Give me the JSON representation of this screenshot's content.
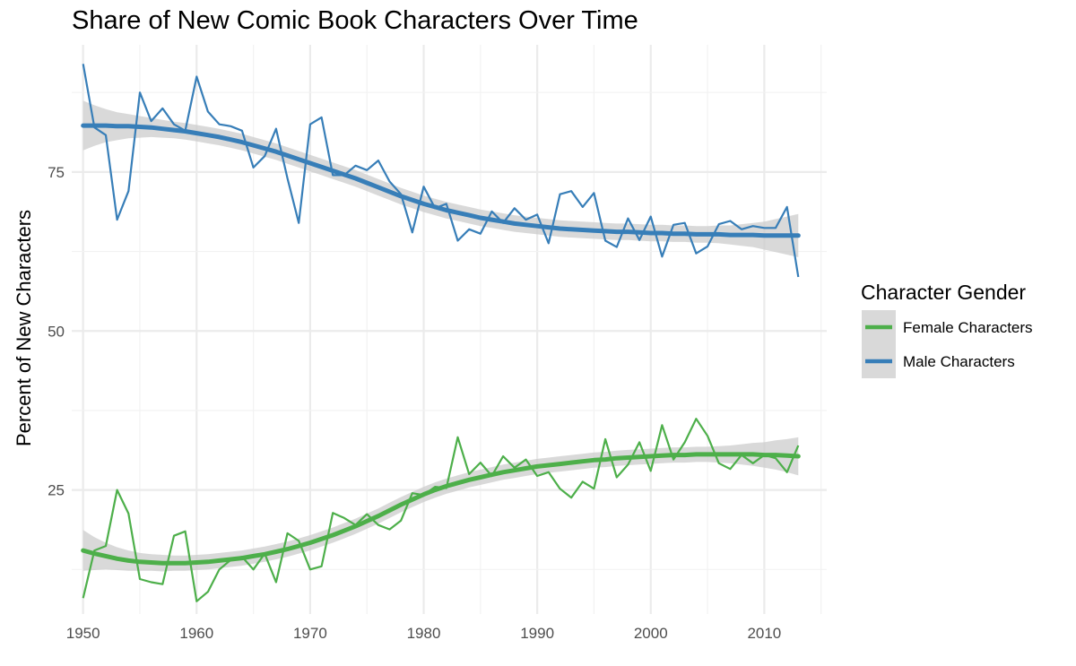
{
  "chart_data": {
    "type": "line",
    "title": "Share of New Comic Book Characters Over Time",
    "xlabel": "",
    "ylabel": "Percent of New Characters",
    "xlim": [
      1949,
      2015.5
    ],
    "ylim": [
      5.5,
      95
    ],
    "x_ticks": [
      1950,
      1960,
      1970,
      1980,
      1990,
      2000,
      2010
    ],
    "y_ticks": [
      25,
      50,
      75
    ],
    "grid": true,
    "legend": {
      "title": "Character Gender",
      "position": "right"
    },
    "x": [
      1950,
      1951,
      1952,
      1953,
      1954,
      1955,
      1956,
      1957,
      1958,
      1959,
      1960,
      1961,
      1962,
      1963,
      1964,
      1965,
      1966,
      1967,
      1968,
      1969,
      1970,
      1971,
      1972,
      1973,
      1974,
      1975,
      1976,
      1977,
      1978,
      1979,
      1980,
      1981,
      1982,
      1983,
      1984,
      1985,
      1986,
      1987,
      1988,
      1989,
      1990,
      1991,
      1992,
      1993,
      1994,
      1995,
      1996,
      1997,
      1998,
      1999,
      2000,
      2001,
      2002,
      2003,
      2004,
      2005,
      2006,
      2007,
      2008,
      2009,
      2010,
      2011,
      2012,
      2013
    ],
    "series": [
      {
        "name": "Female Characters",
        "color": "#4daf4a",
        "values": [
          8.0,
          15.5,
          16.2,
          25.0,
          21.3,
          11.0,
          10.5,
          10.2,
          17.8,
          18.5,
          7.5,
          9.0,
          12.5,
          14.0,
          14.5,
          12.5,
          15.0,
          10.5,
          18.2,
          17.0,
          12.5,
          13.0,
          21.4,
          20.6,
          19.5,
          21.2,
          19.5,
          18.8,
          20.2,
          24.5,
          24.2,
          25.5,
          25.3,
          33.3,
          27.5,
          29.3,
          27.2,
          30.3,
          28.5,
          29.8,
          27.2,
          27.8,
          25.2,
          23.8,
          26.3,
          25.2,
          33.0,
          27.0,
          29.0,
          32.5,
          28.0,
          35.2,
          29.8,
          32.5,
          36.2,
          33.5,
          29.2,
          28.3,
          30.5,
          29.2,
          30.5,
          30.0,
          27.8,
          32.0
        ],
        "smooth": [
          15.5,
          15.0,
          14.6,
          14.2,
          13.9,
          13.7,
          13.6,
          13.5,
          13.5,
          13.5,
          13.6,
          13.7,
          13.9,
          14.1,
          14.3,
          14.6,
          14.9,
          15.3,
          15.7,
          16.2,
          16.7,
          17.3,
          17.9,
          18.6,
          19.3,
          20.1,
          20.9,
          21.8,
          22.7,
          23.5,
          24.3,
          25.0,
          25.6,
          26.1,
          26.6,
          27.0,
          27.4,
          27.8,
          28.1,
          28.4,
          28.7,
          28.9,
          29.1,
          29.3,
          29.5,
          29.7,
          29.8,
          30.0,
          30.1,
          30.2,
          30.3,
          30.4,
          30.5,
          30.5,
          30.6,
          30.6,
          30.6,
          30.6,
          30.6,
          30.6,
          30.5,
          30.5,
          30.4,
          30.3
        ],
        "band": [
          3.2,
          2.6,
          2.1,
          1.8,
          1.6,
          1.4,
          1.3,
          1.3,
          1.2,
          1.2,
          1.2,
          1.2,
          1.2,
          1.2,
          1.2,
          1.2,
          1.2,
          1.2,
          1.2,
          1.2,
          1.2,
          1.2,
          1.2,
          1.2,
          1.2,
          1.2,
          1.2,
          1.2,
          1.2,
          1.2,
          1.2,
          1.2,
          1.2,
          1.2,
          1.2,
          1.2,
          1.2,
          1.2,
          1.2,
          1.2,
          1.2,
          1.2,
          1.2,
          1.2,
          1.2,
          1.2,
          1.2,
          1.2,
          1.2,
          1.2,
          1.2,
          1.2,
          1.2,
          1.2,
          1.2,
          1.2,
          1.3,
          1.4,
          1.6,
          1.8,
          2.0,
          2.3,
          2.6,
          3.0
        ]
      },
      {
        "name": "Male Characters",
        "color": "#377eb8",
        "values": [
          92.0,
          82.0,
          80.8,
          67.5,
          72.0,
          87.5,
          83.0,
          85.0,
          82.5,
          81.5,
          90.0,
          84.5,
          82.5,
          82.2,
          81.5,
          75.7,
          77.5,
          81.8,
          74.0,
          67.0,
          82.5,
          83.6,
          74.5,
          74.5,
          76.0,
          75.3,
          76.8,
          73.5,
          71.5,
          65.5,
          72.7,
          69.3,
          70.0,
          64.2,
          66.0,
          65.3,
          68.8,
          67.0,
          69.3,
          67.5,
          68.3,
          63.8,
          71.5,
          72.0,
          69.5,
          71.7,
          64.2,
          63.2,
          67.7,
          64.3,
          68.0,
          61.7,
          66.7,
          67.0,
          62.2,
          63.3,
          66.8,
          67.3,
          66.0,
          66.5,
          66.2,
          66.2,
          69.5,
          58.5
        ],
        "smooth": [
          82.3,
          82.3,
          82.3,
          82.2,
          82.2,
          82.1,
          82.0,
          81.8,
          81.6,
          81.4,
          81.1,
          80.8,
          80.5,
          80.1,
          79.7,
          79.2,
          78.7,
          78.2,
          77.6,
          77.0,
          76.4,
          75.8,
          75.2,
          74.6,
          74.0,
          73.3,
          72.6,
          71.9,
          71.2,
          70.6,
          70.0,
          69.5,
          69.0,
          68.6,
          68.2,
          67.8,
          67.5,
          67.2,
          66.9,
          66.7,
          66.5,
          66.3,
          66.1,
          66.0,
          65.9,
          65.8,
          65.7,
          65.6,
          65.6,
          65.5,
          65.4,
          65.4,
          65.3,
          65.3,
          65.2,
          65.2,
          65.2,
          65.1,
          65.1,
          65.1,
          65.0,
          65.0,
          65.0,
          65.0
        ],
        "band": [
          3.9,
          3.2,
          2.6,
          2.2,
          1.9,
          1.7,
          1.5,
          1.4,
          1.3,
          1.3,
          1.3,
          1.3,
          1.3,
          1.3,
          1.3,
          1.3,
          1.3,
          1.3,
          1.3,
          1.3,
          1.3,
          1.3,
          1.3,
          1.3,
          1.3,
          1.3,
          1.3,
          1.3,
          1.3,
          1.3,
          1.3,
          1.3,
          1.3,
          1.3,
          1.3,
          1.3,
          1.3,
          1.3,
          1.3,
          1.3,
          1.3,
          1.3,
          1.3,
          1.3,
          1.3,
          1.3,
          1.3,
          1.3,
          1.3,
          1.3,
          1.3,
          1.3,
          1.3,
          1.3,
          1.3,
          1.3,
          1.4,
          1.5,
          1.7,
          1.9,
          2.2,
          2.6,
          3.0,
          3.4
        ]
      }
    ]
  }
}
